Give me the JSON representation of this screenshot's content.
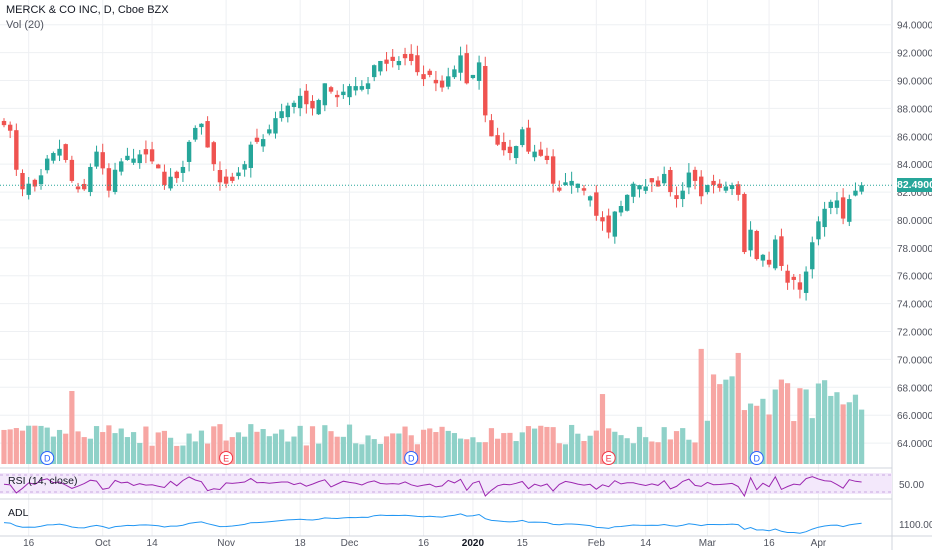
{
  "header": {
    "symbol_line": "MERCK & CO INC, D, Cboe BZX",
    "volume_indicator": "Vol (20)"
  },
  "rsi_panel": {
    "label": "RSI (14, close)",
    "level_label": "50.00"
  },
  "adl_panel": {
    "label": "ADL",
    "level_label": "1100.00"
  },
  "last_price_label": "82.4900",
  "colors": {
    "up": "#26a69a",
    "down": "#ef5350",
    "up_volume": "#8fd1c8",
    "down_volume": "#f7a6a3",
    "rsi_line": "#9c27b0",
    "adl_line": "#2196f3",
    "price_line": "#26a69a"
  },
  "chart_data": {
    "type": "candlestick",
    "price_axis": {
      "range": [
        62.5,
        95.2
      ],
      "ticks": [
        94,
        92,
        90,
        88,
        86,
        84,
        82,
        80,
        78,
        76,
        74,
        72,
        70,
        68,
        66,
        64
      ],
      "tick_labels": [
        "94.0000",
        "92.0000",
        "90.0000",
        "88.0000",
        "86.0000",
        "84.0000",
        "82.0000",
        "80.0000",
        "78.0000",
        "76.0000",
        "74.0000",
        "72.0000",
        "70.0000",
        "68.0000",
        "66.0000",
        "64.0000"
      ]
    },
    "last_price": 82.49,
    "x_axis": {
      "tick_labels": [
        "16",
        "Oct",
        "14",
        "Nov",
        "18",
        "Dec",
        "16",
        "2020",
        "15",
        "Feb",
        "14",
        "Mar",
        "16",
        "Apr"
      ],
      "tick_bar_index": [
        4,
        16,
        24,
        36,
        48,
        56,
        68,
        76,
        84,
        96,
        104,
        114,
        124,
        132
      ]
    },
    "bar_count": 140,
    "closes": [
      86.8,
      86.4,
      83.6,
      82.2,
      82.6,
      82.4,
      83.2,
      84.4,
      84.8,
      85.1,
      84.3,
      82.8,
      82.2,
      82.2,
      83.8,
      84.9,
      83.7,
      82.1,
      83.6,
      84.2,
      84.6,
      84.4,
      84.7,
      84.7,
      84.2,
      83.7,
      82.5,
      83.1,
      83.0,
      83.8,
      85.6,
      86.6,
      86.9,
      85.2,
      84.0,
      82.7,
      82.6,
      82.8,
      83.4,
      84.0,
      85.4,
      85.6,
      85.8,
      86.5,
      87.3,
      87.8,
      88.2,
      88.4,
      88.9,
      88.3,
      88.0,
      88.6,
      89.8,
      89.2,
      88.8,
      89.2,
      89.6,
      89.6,
      89.6,
      89.8,
      91.1,
      91.4,
      91.2,
      91.4,
      91.4,
      91.6,
      91.4,
      90.6,
      90.1,
      90.4,
      89.8,
      89.5,
      90.3,
      90.8,
      91.8,
      89.8,
      90.4,
      91.3,
      87.5,
      86.0,
      85.4,
      85.0,
      84.8,
      85.3,
      86.5,
      84.9,
      84.9,
      84.6,
      84.3,
      82.6,
      82.1,
      82.7,
      82.8,
      82.6,
      82.1,
      81.7,
      80.3,
      79.9,
      79.1,
      80.6,
      81.0,
      81.8,
      82.6,
      82.5,
      82.4,
      82.7,
      82.4,
      83.3,
      82.0,
      81.5,
      82.1,
      83.4,
      82.8,
      81.7,
      82.5,
      82.5,
      82.3,
      82.4,
      82.5,
      81.8,
      77.7,
      79.3,
      77.2,
      77.5,
      76.8,
      78.6,
      76.7,
      75.5,
      75.7,
      75.0,
      76.3,
      78.4,
      79.9,
      80.8,
      81.3,
      81.4,
      80.1,
      81.5,
      82.1,
      82.49
    ],
    "rsi_level": 50,
    "adl_level": 1100
  }
}
